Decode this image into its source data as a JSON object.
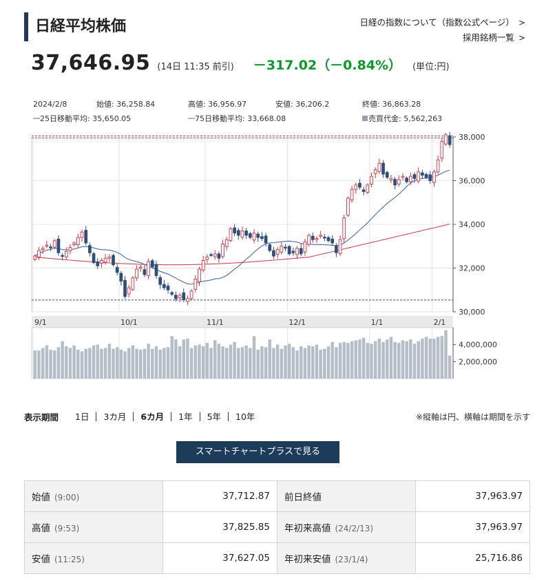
{
  "header": {
    "title": "日経平均株価",
    "links": [
      "日経の指数について（指数公式ページ）",
      "採用銘柄一覧"
    ]
  },
  "quote": {
    "price": "37,646.95",
    "time": "(14日 11:35 前引)",
    "change": "－317.02（－0.84%）",
    "unit": "(単位:円)"
  },
  "chart_info": {
    "date": "2024/2/8",
    "open": "始値: 36,258.84",
    "high": "高値: 36,956.97",
    "low": "安値: 36,206.2",
    "close": "終値: 36,863.28",
    "ma25": "25日移動平均: 35,650.05",
    "ma75": "75日移動平均: 33,668.08",
    "volume": "売買代金: 5,562,263"
  },
  "chart_data": {
    "type": "candlestick",
    "x_labels": [
      "9/1",
      "10/1",
      "11/1",
      "12/1",
      "1/1",
      "2/1"
    ],
    "y_ticks": [
      "38,000",
      "36,000",
      "34,000",
      "32,000",
      "30,000"
    ],
    "y_range": [
      30000,
      38000
    ],
    "volume_ticks": [
      "4,000,000",
      "2,000,000"
    ],
    "volume_range": [
      0,
      6000000
    ],
    "up_color": "#d9303a",
    "down_color": "#2d4f7c",
    "ma25_color": "#4a6aa8",
    "ma75_color": "#c8485a",
    "volume_color": "#b4bec8",
    "reference_lines": [
      38000,
      30540
    ],
    "closes": [
      32550,
      32800,
      32900,
      33050,
      32950,
      33250,
      32700,
      32550,
      32750,
      32950,
      33150,
      33400,
      33650,
      33150,
      32700,
      32250,
      32100,
      32350,
      32450,
      32500,
      32150,
      31800,
      31400,
      30700,
      31100,
      31550,
      31950,
      32050,
      31700,
      32300,
      32050,
      31650,
      31250,
      31100,
      31000,
      30800,
      30600,
      30750,
      30550,
      30600,
      30950,
      31500,
      31950,
      32350,
      32500,
      32600,
      32650,
      32450,
      33100,
      33300,
      33800,
      33600,
      33500,
      33700,
      33500,
      33400,
      33600,
      33400,
      33350,
      33150,
      32800,
      32550,
      32850,
      33000,
      32950,
      32650,
      32700,
      32900,
      32650,
      33200,
      33500,
      33300,
      33350,
      33500,
      33400,
      33250,
      33150,
      32700,
      33300,
      34300,
      35200,
      35600,
      35800,
      35700,
      35500,
      35800,
      36200,
      36500,
      36800,
      36300,
      36150,
      36100,
      35800,
      36050,
      36200,
      35950,
      36200,
      36100,
      36400,
      36250,
      36150,
      36000,
      36400,
      36950,
      37800,
      38100,
      37650
    ],
    "volumes": [
      3.3,
      3.3,
      3.6,
      3.9,
      3.4,
      3.3,
      3.7,
      4.4,
      3.8,
      3.6,
      3.9,
      3.4,
      3.2,
      3.5,
      3.6,
      3.9,
      4.0,
      3.5,
      3.6,
      4.1,
      3.5,
      3.7,
      3.4,
      3.2,
      3.6,
      3.9,
      3.5,
      3.4,
      3.5,
      4.1,
      3.5,
      3.8,
      3.4,
      3.6,
      3.7,
      5.0,
      4.6,
      3.8,
      4.6,
      4.7,
      3.6,
      3.9,
      4.0,
      3.8,
      4.2,
      3.6,
      4.5,
      4.1,
      3.8,
      3.6,
      4.0,
      4.3,
      3.6,
      3.7,
      3.9,
      3.6,
      5.0,
      3.4,
      3.8,
      3.7,
      4.6,
      3.6,
      4.0,
      3.5,
      3.9,
      4.1,
      3.7,
      3.3,
      3.8,
      3.6,
      3.9,
      3.8,
      4.0,
      3.4,
      3.5,
      3.8,
      4.3,
      3.7,
      4.2,
      4.3,
      4.2,
      4.4,
      4.5,
      4.6,
      4.8,
      4.2,
      4.1,
      4.4,
      4.7,
      4.3,
      4.6,
      4.9,
      4.3,
      4.2,
      4.5,
      4.4,
      4.6,
      4.1,
      4.4,
      4.7,
      4.9,
      4.7,
      4.7,
      4.9,
      5.0,
      5.7,
      2.7
    ]
  },
  "periods": {
    "label": "表示期間",
    "items": [
      "1日",
      "3カ月",
      "6カ月",
      "1年",
      "5年",
      "10年"
    ],
    "active": "6カ月",
    "note": "※縦軸は円、横軸は期間を示す"
  },
  "smart_chart_button": "スマートチャートプラスで見る",
  "stats": {
    "rows": [
      {
        "label": "始値",
        "sub": "(9:00)",
        "value": "37,712.87",
        "label2": "前日終値",
        "sub2": "",
        "value2": "37,963.97"
      },
      {
        "label": "高値",
        "sub": "(9:53)",
        "value": "37,825.85",
        "label2": "年初来高値",
        "sub2": "(24/2/13)",
        "value2": "37,963.97"
      },
      {
        "label": "安値",
        "sub": "(11:25)",
        "value": "37,627.05",
        "label2": "年初来安値",
        "sub2": "(23/1/4)",
        "value2": "25,716.86"
      }
    ]
  }
}
